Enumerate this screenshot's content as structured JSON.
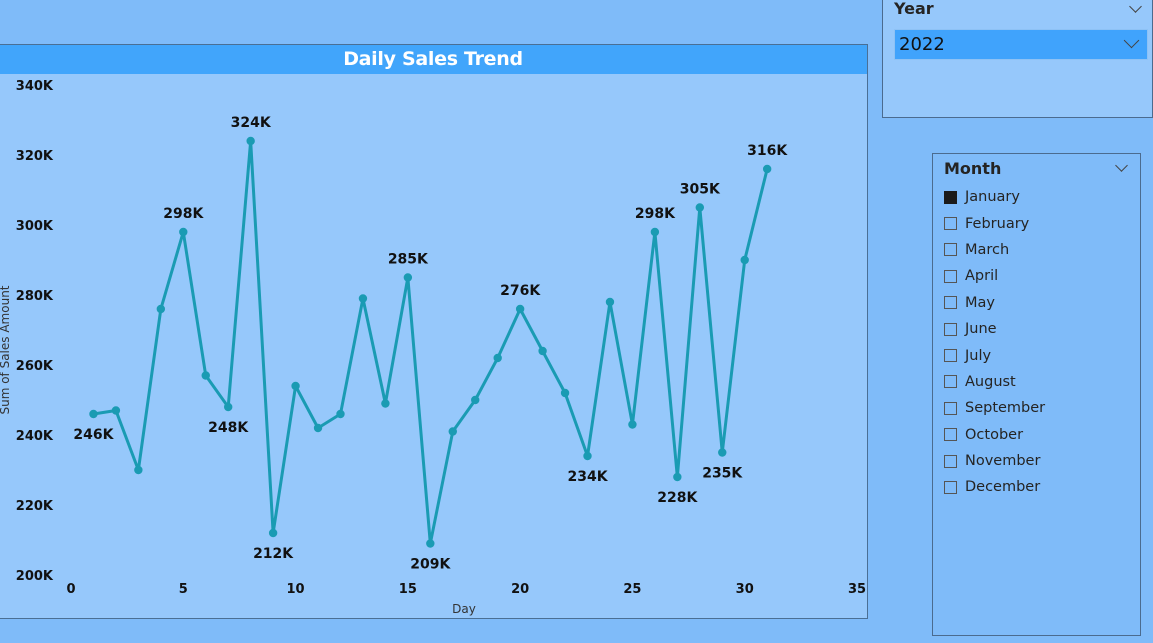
{
  "year_slicer": {
    "header": "Year",
    "selected": "2022"
  },
  "month_slicer": {
    "header": "Month",
    "items": [
      {
        "label": "January",
        "checked": true
      },
      {
        "label": "February",
        "checked": false
      },
      {
        "label": "March",
        "checked": false
      },
      {
        "label": "April",
        "checked": false
      },
      {
        "label": "May",
        "checked": false
      },
      {
        "label": "June",
        "checked": false
      },
      {
        "label": "July",
        "checked": false
      },
      {
        "label": "August",
        "checked": false
      },
      {
        "label": "September",
        "checked": false
      },
      {
        "label": "October",
        "checked": false
      },
      {
        "label": "November",
        "checked": false
      },
      {
        "label": "December",
        "checked": false
      }
    ]
  },
  "colors": {
    "line": "#1a9bb3",
    "title_bar": "#41a5fb",
    "plot_background": "#96c8fb",
    "page_background": "#7fbbf9"
  },
  "chart_data": {
    "type": "line",
    "title": "Daily Sales Trend",
    "xlabel": "Day",
    "ylabel": "Sum of Sales Amount",
    "xlim": [
      0,
      35
    ],
    "ylim": [
      200000,
      340000
    ],
    "x_ticks": [
      0,
      5,
      10,
      15,
      20,
      25,
      30,
      35
    ],
    "y_ticks": [
      200000,
      220000,
      240000,
      260000,
      280000,
      300000,
      320000,
      340000
    ],
    "y_tick_labels": [
      "200K",
      "220K",
      "240K",
      "260K",
      "280K",
      "300K",
      "320K",
      "340K"
    ],
    "grid": false,
    "series": [
      {
        "x": [
          1,
          2,
          3,
          4,
          5,
          6,
          7,
          8,
          9,
          10,
          11,
          12,
          13,
          14,
          15,
          16,
          17,
          18,
          19,
          20,
          21,
          22,
          23,
          24,
          25,
          26,
          27,
          28,
          29,
          30,
          31
        ],
        "values": [
          246000,
          247000,
          230000,
          276000,
          298000,
          257000,
          248000,
          324000,
          212000,
          254000,
          242000,
          246000,
          279000,
          249000,
          285000,
          209000,
          241000,
          250000,
          262000,
          276000,
          264000,
          252000,
          234000,
          278000,
          243000,
          298000,
          228000,
          305000,
          235000,
          290000,
          316000
        ]
      }
    ],
    "data_labels": [
      {
        "x": 1,
        "text": "246K"
      },
      {
        "x": 5,
        "text": "298K"
      },
      {
        "x": 7,
        "text": "248K"
      },
      {
        "x": 8,
        "text": "324K"
      },
      {
        "x": 9,
        "text": "212K"
      },
      {
        "x": 15,
        "text": "285K"
      },
      {
        "x": 16,
        "text": "209K"
      },
      {
        "x": 20,
        "text": "276K"
      },
      {
        "x": 23,
        "text": "234K"
      },
      {
        "x": 26,
        "text": "298K"
      },
      {
        "x": 27,
        "text": "228K"
      },
      {
        "x": 28,
        "text": "305K"
      },
      {
        "x": 29,
        "text": "235K"
      },
      {
        "x": 31,
        "text": "316K"
      }
    ]
  }
}
